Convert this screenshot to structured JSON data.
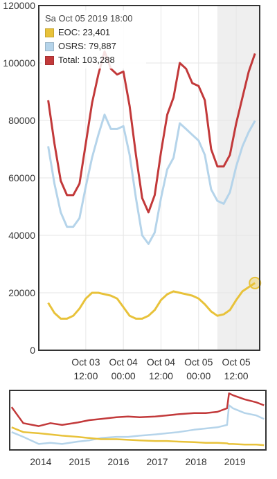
{
  "tooltip": {
    "date": "Sa Oct 05 2019 18:00",
    "items": [
      {
        "label": "EOC: 23,401",
        "color": "#e8c23a"
      },
      {
        "label": "OSRS: 79,887",
        "color": "#b5d4ea"
      },
      {
        "label": "Total: 103,288",
        "color": "#c2393a"
      }
    ]
  },
  "chart_data": [
    {
      "type": "line",
      "ylim": [
        0,
        120000
      ],
      "y_ticks": [
        "0",
        "20000",
        "40000",
        "60000",
        "80000",
        "100000",
        "120000"
      ],
      "x_ticks": [
        {
          "line1": "Oct 03",
          "line2": "12:00"
        },
        {
          "line1": "Oct 04",
          "line2": "00:00"
        },
        {
          "line1": "Oct 04",
          "line2": "12:00"
        },
        {
          "line1": "Oct 05",
          "line2": "00:00"
        },
        {
          "line1": "Oct 05",
          "line2": "12:00"
        }
      ],
      "x_hours_from_oct03_00": [
        0,
        2,
        4,
        6,
        8,
        10,
        12,
        14,
        16,
        18,
        20,
        22,
        24,
        26,
        28,
        30,
        32,
        34,
        36,
        38,
        40,
        42,
        44,
        46,
        48,
        50,
        52,
        54,
        56,
        58,
        60,
        62,
        64,
        66
      ],
      "series": [
        {
          "name": "Total",
          "color": "#c2393a",
          "values": [
            87000,
            72000,
            59000,
            54000,
            54000,
            58000,
            72000,
            86000,
            96000,
            104000,
            98000,
            96000,
            97000,
            85000,
            68000,
            53000,
            48000,
            54000,
            69000,
            82000,
            88000,
            100000,
            98000,
            93000,
            92000,
            87000,
            70000,
            64000,
            64000,
            68000,
            79000,
            88000,
            97000,
            103288
          ]
        },
        {
          "name": "OSRS",
          "color": "#b5d4ea",
          "values": [
            71000,
            58000,
            48000,
            43000,
            43000,
            46000,
            57000,
            67000,
            75000,
            82000,
            77000,
            77000,
            78000,
            68000,
            53000,
            40000,
            37000,
            41000,
            53000,
            63000,
            67000,
            79000,
            77000,
            75000,
            73000,
            68000,
            56000,
            52000,
            51000,
            55000,
            64000,
            71000,
            76000,
            79887
          ]
        },
        {
          "name": "EOC",
          "color": "#e8c23a",
          "values": [
            16500,
            13000,
            11000,
            11000,
            12000,
            14500,
            18000,
            20000,
            20000,
            19500,
            19000,
            18000,
            15000,
            12000,
            11000,
            11000,
            12000,
            14000,
            17500,
            19500,
            20500,
            20000,
            19500,
            19000,
            18000,
            16000,
            13500,
            12000,
            12500,
            14000,
            17500,
            20500,
            22000,
            23401
          ]
        }
      ],
      "shaded_region_start_hours": 54
    },
    {
      "type": "area",
      "x_ticks": [
        "2014",
        "2015",
        "2016",
        "2017",
        "2018",
        "2019"
      ],
      "x_years": [
        2013.3,
        2013.6,
        2014.0,
        2014.3,
        2014.6,
        2015.0,
        2015.3,
        2015.6,
        2016.0,
        2016.3,
        2016.6,
        2017.0,
        2017.3,
        2017.6,
        2018.0,
        2018.3,
        2018.6,
        2018.85,
        2018.9,
        2019.0,
        2019.3,
        2019.6,
        2019.8
      ],
      "series": [
        {
          "name": "Total",
          "values": [
            0.72,
            0.45,
            0.4,
            0.45,
            0.42,
            0.46,
            0.5,
            0.52,
            0.55,
            0.56,
            0.55,
            0.56,
            0.58,
            0.6,
            0.62,
            0.62,
            0.64,
            0.7,
            0.95,
            0.92,
            0.85,
            0.8,
            0.75
          ]
        },
        {
          "name": "OSRS",
          "values": [
            0.3,
            0.22,
            0.1,
            0.12,
            0.1,
            0.14,
            0.16,
            0.2,
            0.22,
            0.22,
            0.24,
            0.26,
            0.28,
            0.3,
            0.34,
            0.36,
            0.38,
            0.42,
            0.75,
            0.7,
            0.62,
            0.58,
            0.52
          ]
        },
        {
          "name": "EOC",
          "values": [
            0.38,
            0.3,
            0.28,
            0.26,
            0.24,
            0.22,
            0.2,
            0.18,
            0.18,
            0.17,
            0.16,
            0.15,
            0.15,
            0.14,
            0.13,
            0.12,
            0.12,
            0.11,
            0.1,
            0.1,
            0.09,
            0.09,
            0.08
          ]
        }
      ]
    }
  ]
}
